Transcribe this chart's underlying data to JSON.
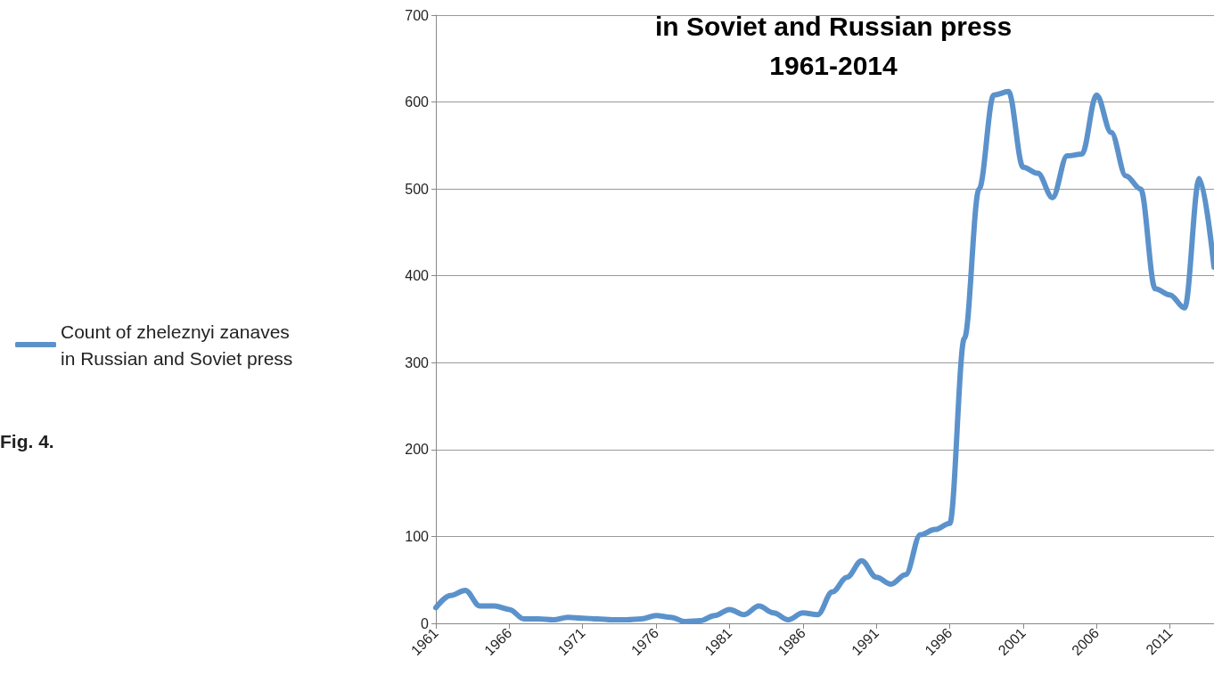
{
  "chart_data": {
    "type": "line",
    "title": "in Soviet and Russian press\n1961-2014",
    "x": [
      1961,
      1962,
      1963,
      1964,
      1965,
      1966,
      1967,
      1968,
      1969,
      1970,
      1971,
      1972,
      1973,
      1974,
      1975,
      1976,
      1977,
      1978,
      1979,
      1980,
      1981,
      1982,
      1983,
      1984,
      1985,
      1986,
      1987,
      1988,
      1989,
      1990,
      1991,
      1992,
      1993,
      1994,
      1995,
      1996,
      1997,
      1998,
      1999,
      2000,
      2001,
      2002,
      2003,
      2004,
      2005,
      2006,
      2007,
      2008,
      2009,
      2010,
      2011,
      2012,
      2013,
      2014
    ],
    "series": [
      {
        "name": "Count of zheleznyi zanaves\nin Russian and Soviet press",
        "color": "#5b92cb",
        "values": [
          18,
          32,
          38,
          20,
          20,
          16,
          5,
          5,
          4,
          7,
          6,
          5,
          4,
          4,
          5,
          9,
          7,
          2,
          3,
          9,
          16,
          10,
          20,
          12,
          4,
          12,
          10,
          36,
          53,
          72,
          53,
          45,
          56,
          102,
          108,
          115,
          328,
          500,
          608,
          612,
          525,
          518,
          490,
          538,
          540,
          608,
          565,
          515,
          500,
          385,
          378,
          363,
          512,
          410
        ]
      }
    ],
    "xlim": [
      1961,
      2014
    ],
    "xticks": [
      1961,
      1966,
      1971,
      1976,
      1981,
      1986,
      1991,
      1996,
      2001,
      2006,
      2011
    ],
    "ylim": [
      0,
      700
    ],
    "yticks": [
      0,
      100,
      200,
      300,
      400,
      500,
      600,
      700
    ],
    "grid": "y",
    "legend": "left",
    "marker": "none",
    "line_style": "solid",
    "annotations": [
      "Fig. 4."
    ]
  }
}
